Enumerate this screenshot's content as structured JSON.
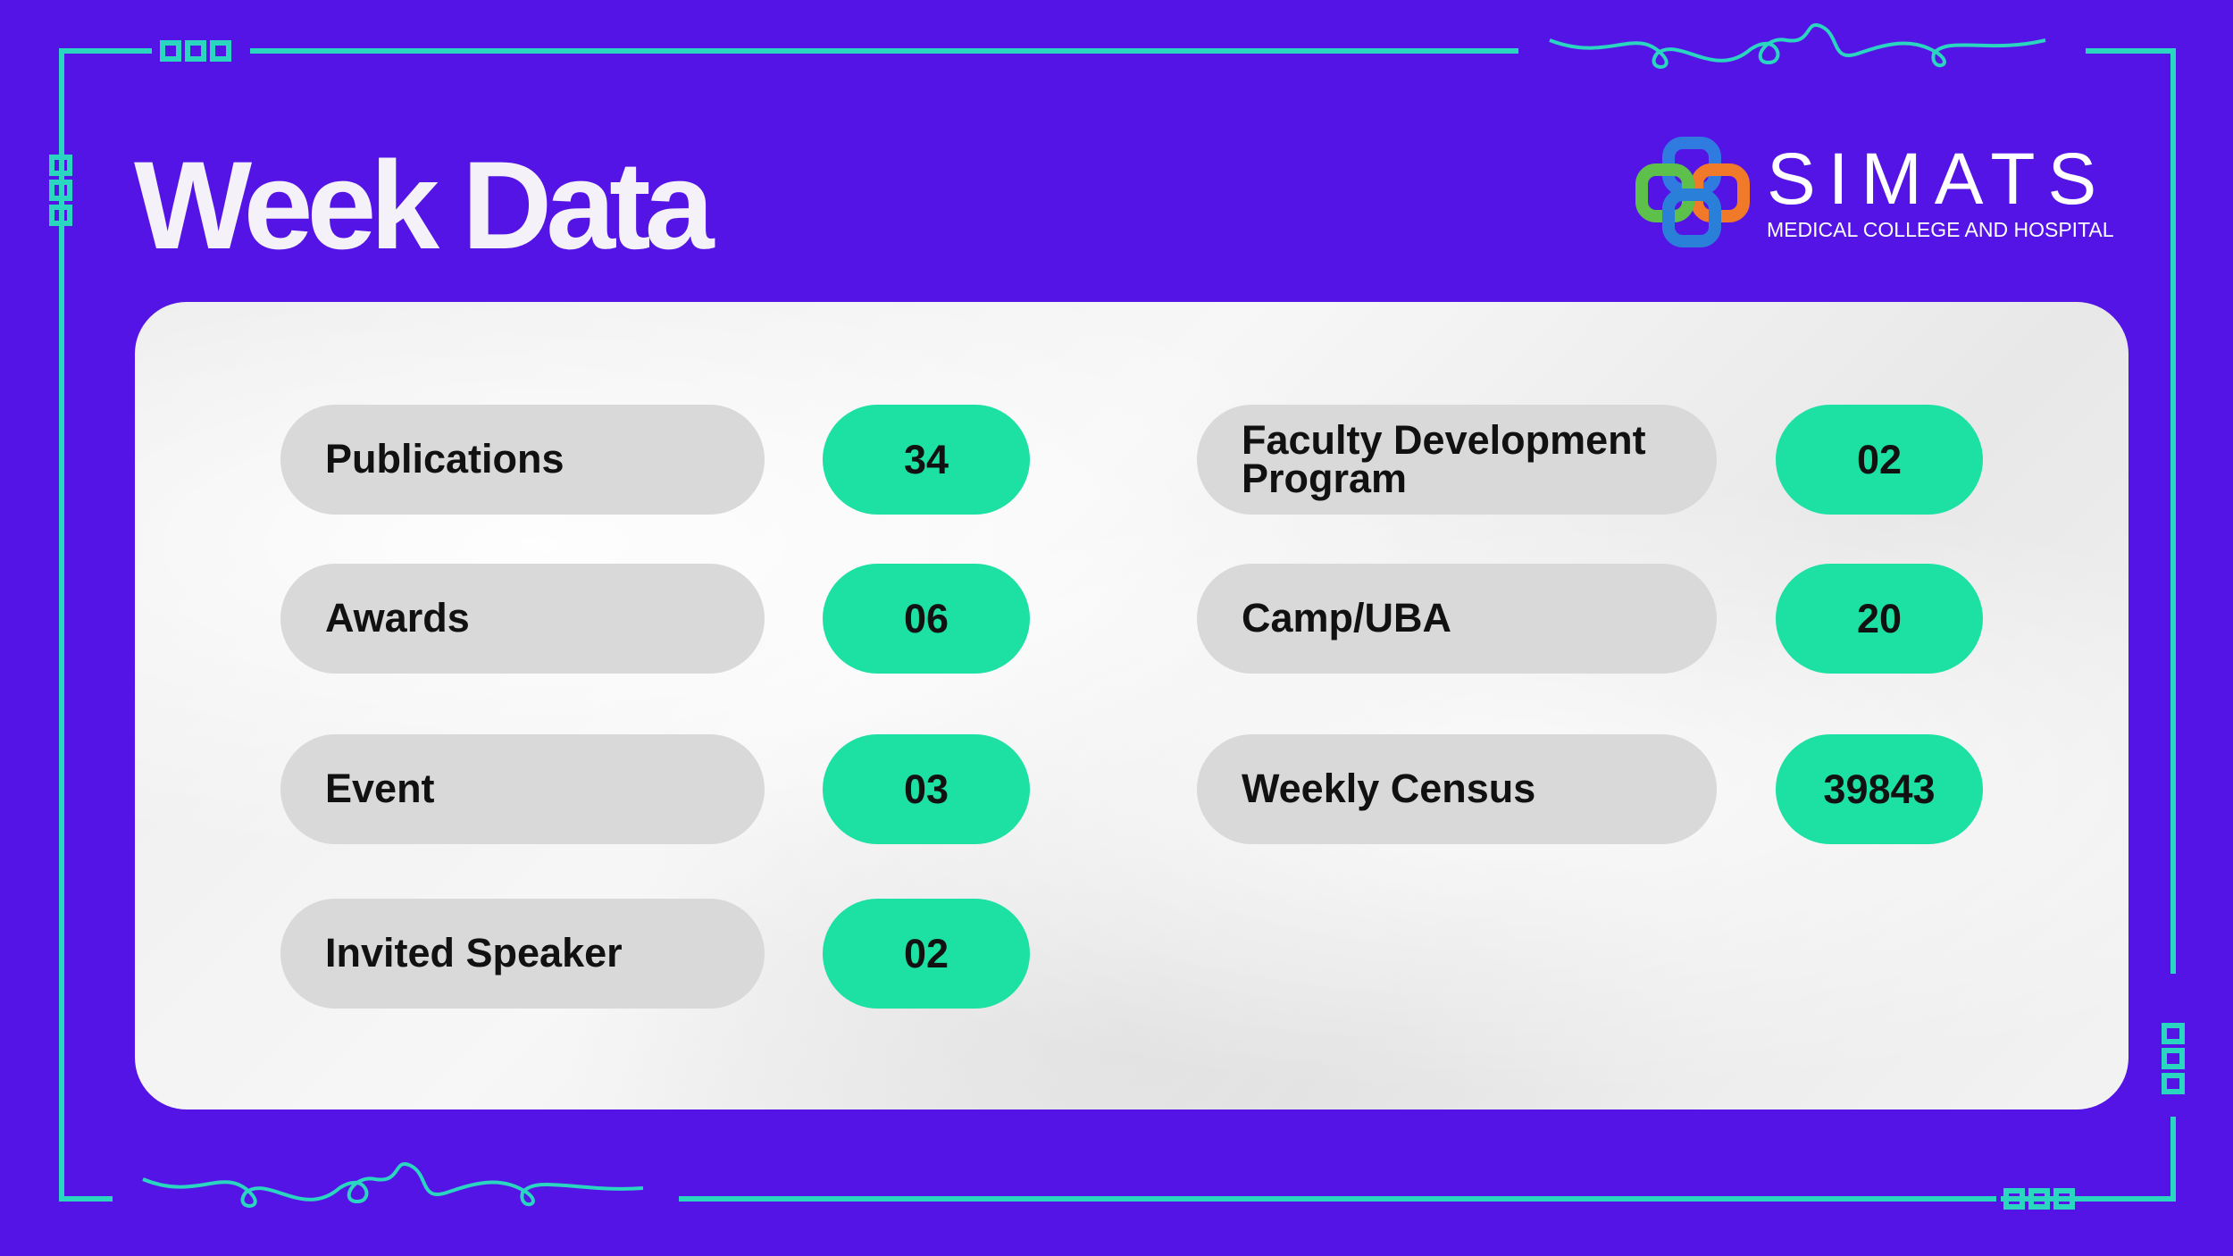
{
  "header": {
    "title": "Week Data",
    "logo": {
      "name": "SIMATS",
      "subtitle": "MEDICAL COLLEGE AND HOSPITAL"
    }
  },
  "items": {
    "left": [
      {
        "label": "Publications",
        "value": "34"
      },
      {
        "label": "Awards",
        "value": "06"
      },
      {
        "label": "Event",
        "value": "03"
      },
      {
        "label": "Invited Speaker",
        "value": "02"
      }
    ],
    "right": [
      {
        "label": "Faculty Development Program",
        "value": "02"
      },
      {
        "label": "Camp/UBA",
        "value": "20"
      },
      {
        "label": "Weekly Census",
        "value": "39843"
      }
    ]
  }
}
